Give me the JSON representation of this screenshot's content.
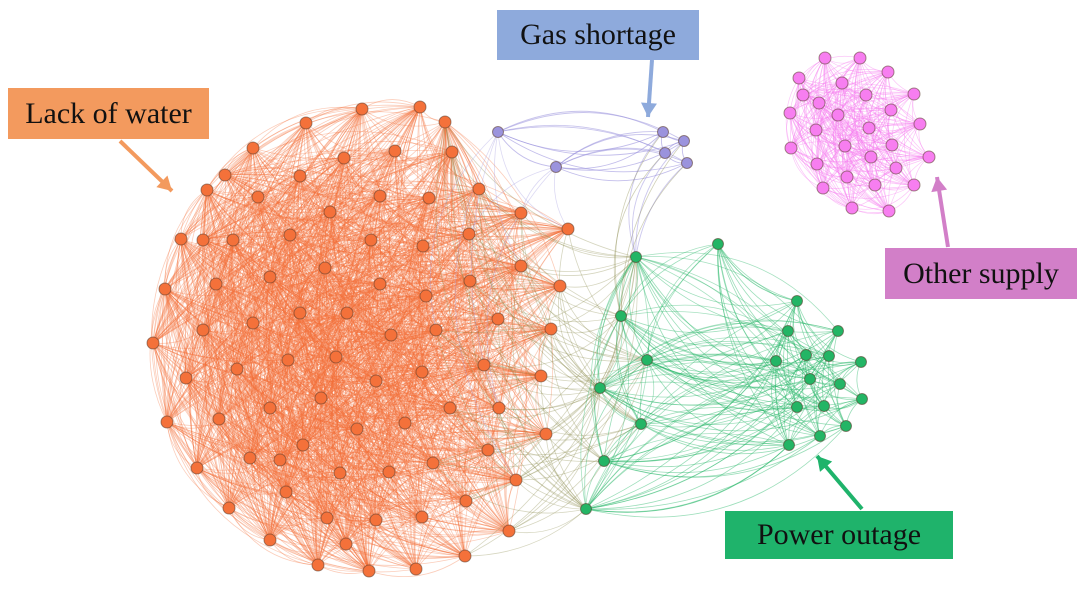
{
  "labels": {
    "water": "Lack of water",
    "gas": "Gas shortage",
    "other": "Other supply",
    "power": "Power outage"
  },
  "colors": {
    "water": "#f4713a",
    "water_box": "#f39a5e",
    "gas": "#9b93dd",
    "gas_box": "#8eaadc",
    "other": "#f77ef0",
    "other_box": "#d27fc8",
    "power": "#23b565",
    "power_box": "#1fb36b",
    "mixed_edge": "#8a8a4a"
  }
}
